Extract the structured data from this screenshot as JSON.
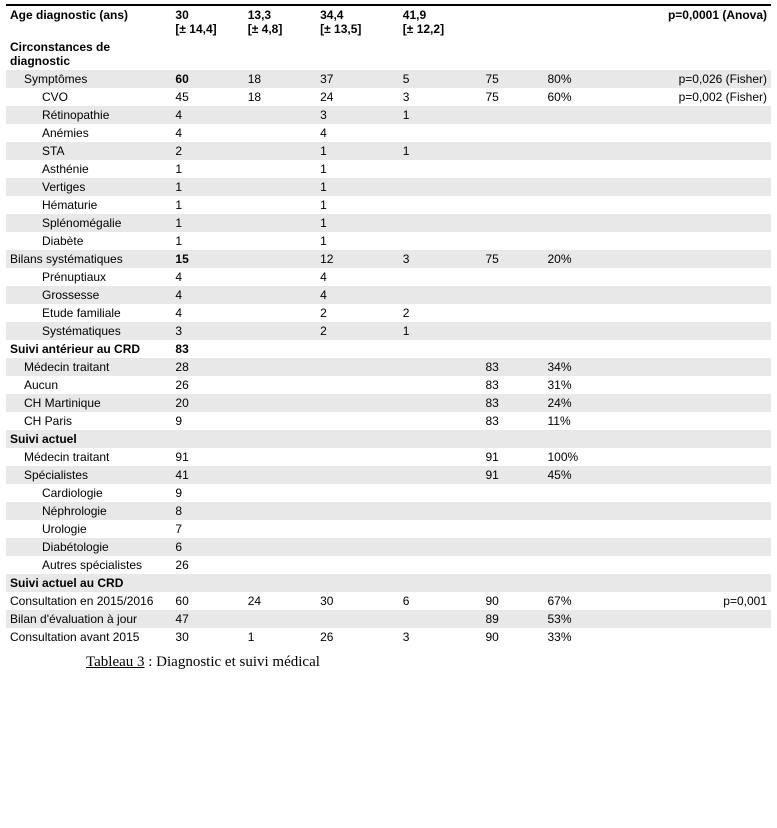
{
  "captionLabel": "Tableau 3",
  "captionRest": " : Diagnostic et suivi médical",
  "rows": [
    {
      "cells": [
        "Age diagnostic (ans)",
        "30\n[± 14,4]",
        "13,3\n[± 4,8]",
        "34,4\n[± 13,5]",
        "41,9\n[± 12,2]",
        "",
        "",
        "p=0,0001 (Anova)"
      ],
      "classes": "header topline",
      "labelIndent": 0
    },
    {
      "cells": [
        "Circonstances de diagnostic",
        "",
        "",
        "",
        "",
        "",
        "",
        ""
      ],
      "classes": "section",
      "labelIndent": 0
    },
    {
      "cells": [
        "Symptômes",
        "60",
        "18",
        "37",
        "5",
        "75",
        "80%",
        "p=0,026 (Fisher)"
      ],
      "classes": "shade",
      "labelIndent": 1,
      "boldCols": [
        1
      ]
    },
    {
      "cells": [
        "CVO",
        "45",
        "18",
        "24",
        "3",
        "75",
        "60%",
        "p=0,002 (Fisher)"
      ],
      "classes": "",
      "labelIndent": 2
    },
    {
      "cells": [
        "Rétinopathie",
        "4",
        "",
        "3",
        "1",
        "",
        "",
        ""
      ],
      "classes": "shade",
      "labelIndent": 2
    },
    {
      "cells": [
        "Anémies",
        "4",
        "",
        "4",
        "",
        "",
        "",
        ""
      ],
      "classes": "",
      "labelIndent": 2
    },
    {
      "cells": [
        "STA",
        "2",
        "",
        "1",
        "1",
        "",
        "",
        ""
      ],
      "classes": "shade",
      "labelIndent": 2
    },
    {
      "cells": [
        "Asthénie",
        "1",
        "",
        "1",
        "",
        "",
        "",
        ""
      ],
      "classes": "",
      "labelIndent": 2
    },
    {
      "cells": [
        "Vertiges",
        "1",
        "",
        "1",
        "",
        "",
        "",
        ""
      ],
      "classes": "shade",
      "labelIndent": 2
    },
    {
      "cells": [
        "Hématurie",
        "1",
        "",
        "1",
        "",
        "",
        "",
        ""
      ],
      "classes": "",
      "labelIndent": 2
    },
    {
      "cells": [
        "Splénomégalie",
        "1",
        "",
        "1",
        "",
        "",
        "",
        ""
      ],
      "classes": "shade",
      "labelIndent": 2
    },
    {
      "cells": [
        "Diabète",
        "1",
        "",
        "1",
        "",
        "",
        "",
        ""
      ],
      "classes": "",
      "labelIndent": 2
    },
    {
      "cells": [
        "Bilans systématiques",
        "15",
        "",
        "12",
        "3",
        "75",
        "20%",
        ""
      ],
      "classes": "shade",
      "labelIndent": 0,
      "boldCols": [
        1
      ]
    },
    {
      "cells": [
        "Prénuptiaux",
        "4",
        "",
        "4",
        "",
        "",
        "",
        ""
      ],
      "classes": "",
      "labelIndent": 2
    },
    {
      "cells": [
        "Grossesse",
        "4",
        "",
        "4",
        "",
        "",
        "",
        ""
      ],
      "classes": "shade",
      "labelIndent": 2
    },
    {
      "cells": [
        "Etude familiale",
        "4",
        "",
        "2",
        "2",
        "",
        "",
        ""
      ],
      "classes": "",
      "labelIndent": 2
    },
    {
      "cells": [
        "Systématiques",
        "3",
        "",
        "2",
        "1",
        "",
        "",
        ""
      ],
      "classes": "shade",
      "labelIndent": 2
    },
    {
      "cells": [
        "Suivi antérieur au CRD",
        "83",
        "",
        "",
        "",
        "",
        "",
        ""
      ],
      "classes": "section",
      "labelIndent": 0
    },
    {
      "cells": [
        "Médecin traitant",
        "28",
        "",
        "",
        "",
        "83",
        "34%",
        ""
      ],
      "classes": "shade",
      "labelIndent": 1
    },
    {
      "cells": [
        "Aucun",
        "26",
        "",
        "",
        "",
        "83",
        "31%",
        ""
      ],
      "classes": "",
      "labelIndent": 1
    },
    {
      "cells": [
        "CH Martinique",
        "20",
        "",
        "",
        "",
        "83",
        "24%",
        ""
      ],
      "classes": "shade",
      "labelIndent": 1
    },
    {
      "cells": [
        "CH Paris",
        "9",
        "",
        "",
        "",
        "83",
        "11%",
        ""
      ],
      "classes": "",
      "labelIndent": 1
    },
    {
      "cells": [
        "Suivi actuel",
        "",
        "",
        "",
        "",
        "",
        "",
        ""
      ],
      "classes": "section shade",
      "labelIndent": 0
    },
    {
      "cells": [
        "Médecin traitant",
        "91",
        "",
        "",
        "",
        "91",
        "100%",
        ""
      ],
      "classes": "",
      "labelIndent": 1
    },
    {
      "cells": [
        "Spécialistes",
        "41",
        "",
        "",
        "",
        "91",
        "45%",
        ""
      ],
      "classes": "shade",
      "labelIndent": 1
    },
    {
      "cells": [
        "Cardiologie",
        "9",
        "",
        "",
        "",
        "",
        "",
        ""
      ],
      "classes": "",
      "labelIndent": 2
    },
    {
      "cells": [
        "Néphrologie",
        "8",
        "",
        "",
        "",
        "",
        "",
        ""
      ],
      "classes": "shade",
      "labelIndent": 2
    },
    {
      "cells": [
        "Urologie",
        "7",
        "",
        "",
        "",
        "",
        "",
        ""
      ],
      "classes": "",
      "labelIndent": 2
    },
    {
      "cells": [
        "Diabétologie",
        "6",
        "",
        "",
        "",
        "",
        "",
        ""
      ],
      "classes": "shade",
      "labelIndent": 2
    },
    {
      "cells": [
        "Autres spécialistes",
        "26",
        "",
        "",
        "",
        "",
        "",
        ""
      ],
      "classes": "",
      "labelIndent": 2
    },
    {
      "cells": [
        "Suivi actuel au CRD",
        "",
        "",
        "",
        "",
        "",
        "",
        ""
      ],
      "classes": "section shade",
      "labelIndent": 0
    },
    {
      "cells": [
        "Consultation en 2015/2016",
        "60",
        "24",
        "30",
        "6",
        "90",
        "67%",
        "p=0,001"
      ],
      "classes": "",
      "labelIndent": 0
    },
    {
      "cells": [
        "Bilan d'évaluation à jour",
        "47",
        "",
        "",
        "",
        "89",
        "53%",
        ""
      ],
      "classes": "shade",
      "labelIndent": 0
    },
    {
      "cells": [
        "Consultation avant 2015",
        "30",
        "1",
        "26",
        "3",
        "90",
        "33%",
        ""
      ],
      "classes": "",
      "labelIndent": 0
    }
  ]
}
